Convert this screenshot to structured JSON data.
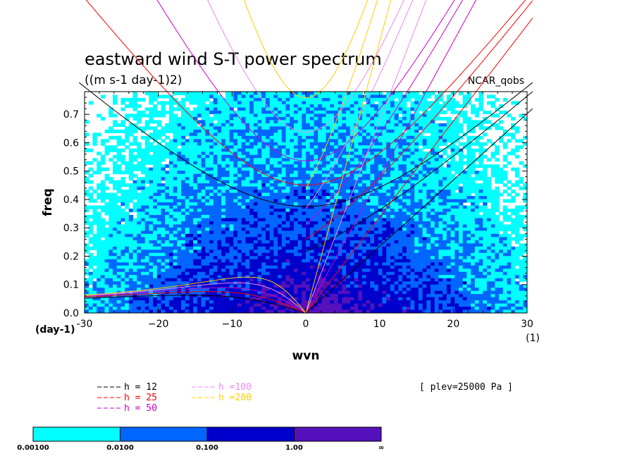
{
  "chart_data": {
    "type": "heatmap",
    "title": "eastward wind S-T power spectrum",
    "units": "((m s-1 day-1)2)",
    "model": "NCAR_qobs",
    "xlabel": "wvn",
    "ylabel": "freq",
    "xlim": [
      -30,
      30
    ],
    "ylim": [
      0.0,
      0.78
    ],
    "x_ticks": [
      -30,
      -20,
      -10,
      0,
      10,
      20,
      30
    ],
    "x_tick_labels": [
      "-30",
      "−20",
      "−10",
      "0",
      "10",
      "20",
      "30"
    ],
    "y_ticks": [
      0.0,
      0.1,
      0.2,
      0.3,
      0.4,
      0.5,
      0.6,
      0.7
    ],
    "y_tick_labels": [
      "0.0",
      "0.1",
      "0.2",
      "0.3",
      "0.4",
      "0.5",
      "0.6",
      "0.7"
    ],
    "x_unit": "(1)",
    "y_unit": "(day-1)",
    "level_note": "[ plev=25000 Pa ]",
    "equivalent_depths": [
      {
        "name": "h = 12",
        "h": 12,
        "color": "#000000"
      },
      {
        "name": "h = 25",
        "h": 25,
        "color": "#ff0000"
      },
      {
        "name": "h = 50",
        "h": 50,
        "color": "#cc00cc"
      },
      {
        "name": "h =100",
        "h": 100,
        "color": "#ee88ee"
      },
      {
        "name": "h =200",
        "h": 200,
        "color": "#ffcc00"
      }
    ],
    "contour_levels": [
      0.001,
      0.01,
      0.1,
      1.0
    ],
    "colorbar": {
      "labels": [
        "0.00100",
        "0.0100",
        "0.100",
        "1.00",
        "∞"
      ],
      "colors": [
        "#00ffff",
        "#0066ff",
        "#0000cc",
        "#5511bb"
      ]
    }
  }
}
